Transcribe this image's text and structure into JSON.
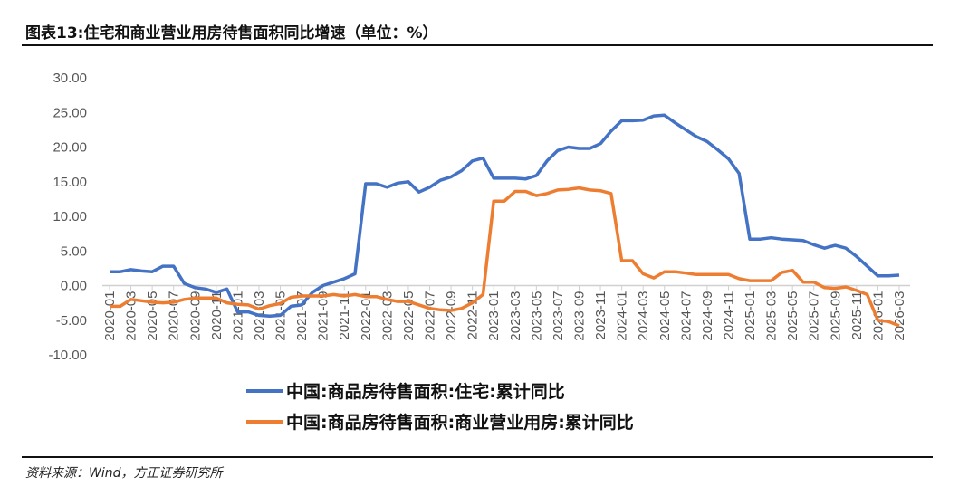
{
  "title": "图表13:住宅和商业营业用房待售面积同比增速（单位：%）",
  "source": "资料来源：Wind，方正证券研究所",
  "chart_data": {
    "type": "line",
    "title": "图表13:住宅和商业营业用房待售面积同比增速（单位：%）",
    "xlabel": "",
    "ylabel": "",
    "ylim": [
      -10,
      30
    ],
    "yticks": [
      "30.00",
      "25.00",
      "20.00",
      "15.00",
      "10.00",
      "5.00",
      "0.00",
      "-5.00",
      "-10.00"
    ],
    "grid": false,
    "legend_position": "bottom",
    "x": [
      "2020-01",
      "2020-02",
      "2020-03",
      "2020-04",
      "2020-05",
      "2020-06",
      "2020-07",
      "2020-08",
      "2020-09",
      "2020-10",
      "2020-11",
      "2020-12",
      "2021-01",
      "2021-02",
      "2021-03",
      "2021-04",
      "2021-05",
      "2021-06",
      "2021-07",
      "2021-08",
      "2021-09",
      "2021-10",
      "2021-11",
      "2021-12",
      "2022-01",
      "2022-02",
      "2022-03",
      "2022-04",
      "2022-05",
      "2022-06",
      "2022-07",
      "2022-08",
      "2022-09",
      "2022-10",
      "2022-11",
      "2022-12",
      "2023-01",
      "2023-02",
      "2023-03",
      "2023-04",
      "2023-05",
      "2023-06",
      "2023-07",
      "2023-08",
      "2023-09",
      "2023-10",
      "2023-11",
      "2023-12",
      "2024-01",
      "2024-02",
      "2024-03",
      "2024-04",
      "2024-05",
      "2024-06",
      "2024-07",
      "2024-08",
      "2024-09",
      "2024-10",
      "2024-11",
      "2024-12",
      "2025-01",
      "2025-02",
      "2025-03",
      "2025-04",
      "2025-05",
      "2025-06",
      "2025-07",
      "2025-08",
      "2025-09",
      "2025-10",
      "2025-11",
      "2025-12",
      "2026-01",
      "2026-02",
      "2026-03"
    ],
    "series": [
      {
        "name": "中国:商品房待售面积:住宅:累计同比",
        "color": "#4472C4",
        "values": [
          2.0,
          2.0,
          2.3,
          2.1,
          2.0,
          2.8,
          2.8,
          0.3,
          -0.3,
          -0.5,
          -1.0,
          -0.5,
          -3.8,
          -3.8,
          -4.3,
          -4.4,
          -4.3,
          -3.0,
          -2.8,
          -1.0,
          0.0,
          0.5,
          1.0,
          1.7,
          14.7,
          14.7,
          14.2,
          14.8,
          15.0,
          13.5,
          14.2,
          15.2,
          15.7,
          16.6,
          18.0,
          18.4,
          15.5,
          15.5,
          15.5,
          15.4,
          15.9,
          18.0,
          19.5,
          20.0,
          19.8,
          19.8,
          20.5,
          22.3,
          23.8,
          23.8,
          23.9,
          24.5,
          24.6,
          23.5,
          22.5,
          21.5,
          20.8,
          19.6,
          18.3,
          16.2,
          6.7,
          6.7,
          6.9,
          6.7,
          6.6,
          6.5,
          5.9,
          5.4,
          5.8,
          5.4,
          4.2,
          2.8,
          1.4,
          1.4,
          1.5
        ]
      },
      {
        "name": "中国:商品房待售面积:商业营业用房:累计同比",
        "color": "#ED7D31",
        "values": [
          -3.0,
          -3.0,
          -2.0,
          -2.2,
          -2.4,
          -2.5,
          -2.4,
          -2.0,
          -1.8,
          -1.8,
          -1.8,
          -2.5,
          -2.7,
          -2.8,
          -3.4,
          -2.9,
          -2.6,
          -1.7,
          -1.5,
          -1.5,
          -1.5,
          -1.3,
          -1.5,
          -1.3,
          -1.6,
          -1.6,
          -2.0,
          -2.3,
          -2.3,
          -2.8,
          -3.3,
          -3.5,
          -3.6,
          -3.3,
          -2.5,
          -1.3,
          12.2,
          12.2,
          13.6,
          13.6,
          13.0,
          13.3,
          13.8,
          13.9,
          14.1,
          13.8,
          13.7,
          13.3,
          3.6,
          3.6,
          1.7,
          1.1,
          2.0,
          2.0,
          1.8,
          1.6,
          1.6,
          1.6,
          1.6,
          1.0,
          0.7,
          0.7,
          0.7,
          1.9,
          2.2,
          0.5,
          0.5,
          -0.3,
          -0.4,
          -0.2,
          -0.7,
          -1.3,
          -5.0,
          -5.2,
          -5.8
        ]
      }
    ]
  }
}
